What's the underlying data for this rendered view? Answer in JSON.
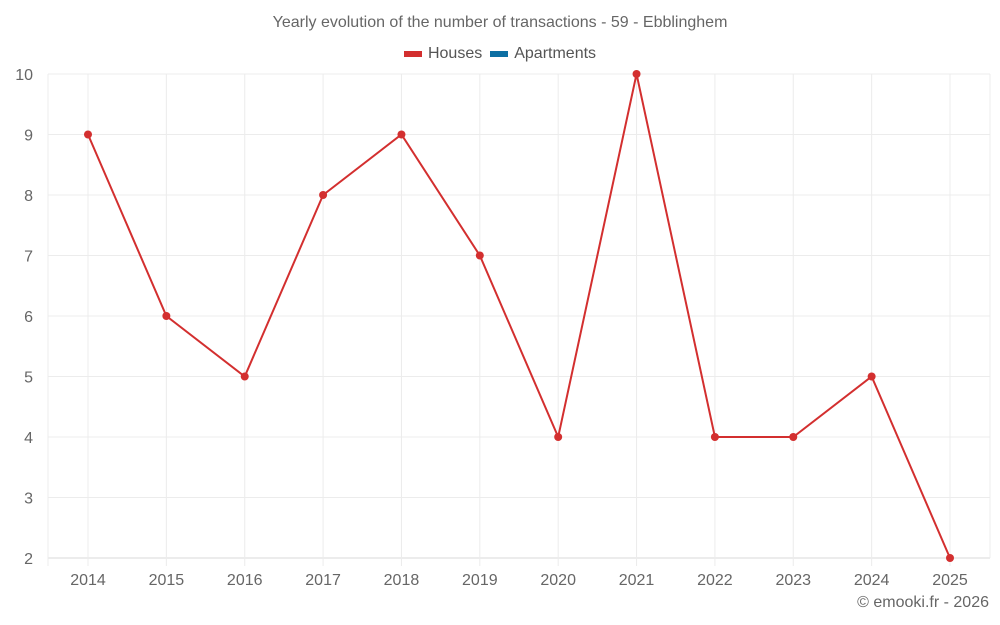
{
  "chart_data": {
    "type": "line",
    "title": "Yearly evolution of the number of transactions - 59 - Ebblinghem",
    "xlabel": "",
    "ylabel": "",
    "categories": [
      "2014",
      "2015",
      "2016",
      "2017",
      "2018",
      "2019",
      "2020",
      "2021",
      "2022",
      "2023",
      "2024",
      "2025"
    ],
    "series": [
      {
        "name": "Houses",
        "color": "#d32f2f",
        "values": [
          9,
          6,
          5,
          8,
          9,
          7,
          4,
          10,
          4,
          4,
          5,
          2
        ]
      },
      {
        "name": "Apartments",
        "color": "#0d6fa3",
        "values": []
      }
    ],
    "ylim": [
      2,
      10
    ],
    "yticks": [
      2,
      3,
      4,
      5,
      6,
      7,
      8,
      9,
      10
    ],
    "grid": true,
    "legend_position": "top"
  },
  "legend": [
    {
      "label": "Houses",
      "color": "#d32f2f"
    },
    {
      "label": "Apartments",
      "color": "#0d6fa3"
    }
  ],
  "footer": "© emooki.fr - 2026"
}
